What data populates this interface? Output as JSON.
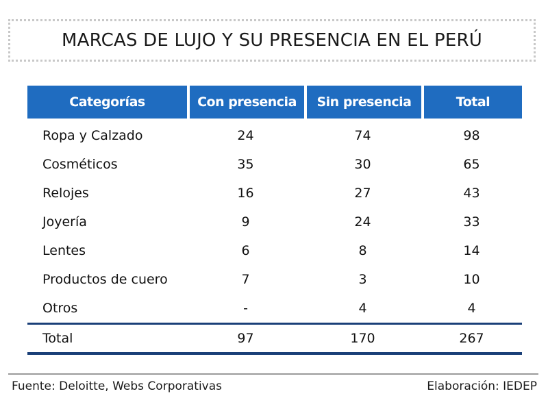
{
  "chart_data": {
    "type": "table",
    "title": "MARCAS DE LUJO Y SU PRESENCIA EN EL PERÚ",
    "columns": [
      "Categorías",
      "Con presencia",
      "Sin presencia",
      "Total"
    ],
    "rows": [
      {
        "category": "Ropa y Calzado",
        "con_presencia": "24",
        "sin_presencia": "74",
        "total": "98"
      },
      {
        "category": "Cosméticos",
        "con_presencia": "35",
        "sin_presencia": "30",
        "total": "65"
      },
      {
        "category": "Relojes",
        "con_presencia": "16",
        "sin_presencia": "27",
        "total": "43"
      },
      {
        "category": "Joyería",
        "con_presencia": "9",
        "sin_presencia": "24",
        "total": "33"
      },
      {
        "category": "Lentes",
        "con_presencia": "6",
        "sin_presencia": "8",
        "total": "14"
      },
      {
        "category": "Productos de cuero",
        "con_presencia": "7",
        "sin_presencia": "3",
        "total": "10"
      },
      {
        "category": "Otros",
        "con_presencia": "-",
        "sin_presencia": "4",
        "total": "4"
      }
    ],
    "totals": {
      "category": "Total",
      "con_presencia": "97",
      "sin_presencia": "170",
      "total": "267"
    }
  },
  "footer": {
    "source": "Fuente: Deloitte, Webs Corporativas",
    "credit": "Elaboración: IEDEP"
  },
  "colors": {
    "header_bg": "#1f6cc0",
    "rule": "#1a3f78"
  }
}
